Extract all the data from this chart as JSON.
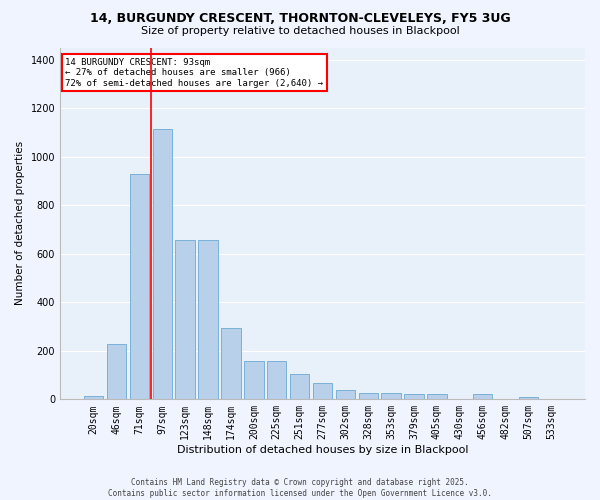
{
  "title_line1": "14, BURGUNDY CRESCENT, THORNTON-CLEVELEYS, FY5 3UG",
  "title_line2": "Size of property relative to detached houses in Blackpool",
  "xlabel": "Distribution of detached houses by size in Blackpool",
  "ylabel": "Number of detached properties",
  "bar_labels": [
    "20sqm",
    "46sqm",
    "71sqm",
    "97sqm",
    "123sqm",
    "148sqm",
    "174sqm",
    "200sqm",
    "225sqm",
    "251sqm",
    "277sqm",
    "302sqm",
    "328sqm",
    "353sqm",
    "379sqm",
    "405sqm",
    "430sqm",
    "456sqm",
    "482sqm",
    "507sqm",
    "533sqm"
  ],
  "bar_values": [
    15,
    230,
    930,
    1115,
    655,
    655,
    295,
    160,
    160,
    105,
    68,
    38,
    25,
    25,
    22,
    20,
    0,
    20,
    0,
    10,
    0
  ],
  "bar_color": "#b8d0ea",
  "bar_edge_color": "#6aaad4",
  "bg_color": "#e8f0fa",
  "grid_color": "#ffffff",
  "vline_color": "red",
  "annotation_text": "14 BURGUNDY CRESCENT: 93sqm\n← 27% of detached houses are smaller (966)\n72% of semi-detached houses are larger (2,640) →",
  "ylim": [
    0,
    1450
  ],
  "yticks": [
    0,
    200,
    400,
    600,
    800,
    1000,
    1200,
    1400
  ],
  "fig_facecolor": "#f0f4ff",
  "footer_line1": "Contains HM Land Registry data © Crown copyright and database right 2025.",
  "footer_line2": "Contains public sector information licensed under the Open Government Licence v3.0."
}
